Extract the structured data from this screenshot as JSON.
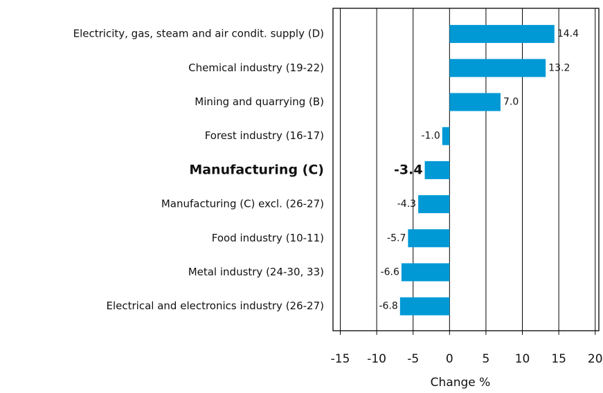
{
  "chart_data": {
    "type": "bar",
    "orientation": "horizontal",
    "categories": [
      "Electricity, gas, steam and air condit. supply (D)",
      "Chemical industry (19-22)",
      "Mining and quarrying (B)",
      "Forest industry (16-17)",
      "Manufacturing (C)",
      "Manufacturing (C) excl. (26-27)",
      "Food industry (10-11)",
      "Metal industry (24-30, 33)",
      "Electrical and electronics industry (26-27)"
    ],
    "values": [
      14.4,
      13.2,
      7.0,
      -1.0,
      -3.4,
      -4.3,
      -5.7,
      -6.6,
      -6.8
    ],
    "value_labels": [
      "14.4",
      "13.2",
      "7.0",
      "-1.0",
      "-3.4",
      "-4.3",
      "-5.7",
      "-6.6",
      "-6.8"
    ],
    "highlight_index": 4,
    "color": "#0099d6",
    "xlabel": "Change %",
    "xlim": [
      -16,
      20.5
    ],
    "xticks": [
      -15,
      -10,
      -5,
      0,
      5,
      10,
      15,
      20
    ],
    "grid": true
  }
}
